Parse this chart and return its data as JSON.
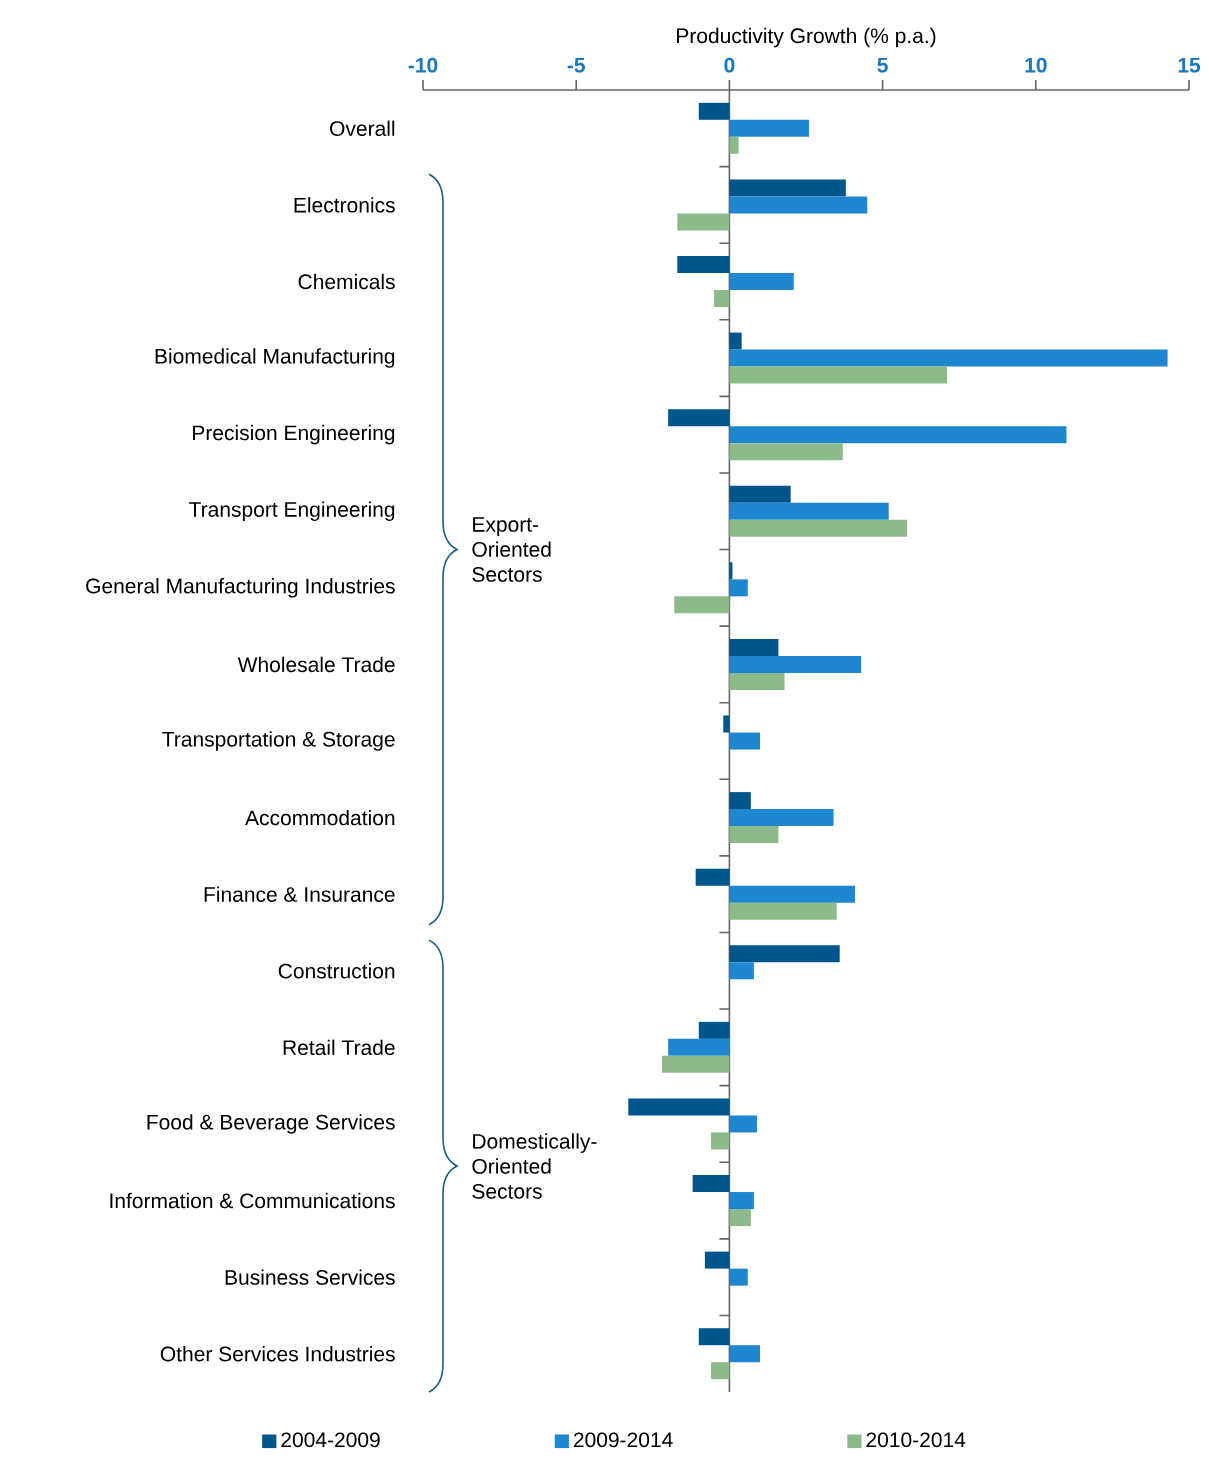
{
  "chart_data": {
    "type": "bar",
    "orientation": "horizontal",
    "xlabel": "Productivity Growth (% p.a.)",
    "categories": [
      "Overall",
      "Electronics",
      "Chemicals",
      "Biomedical Manufacturing",
      "Precision Engineering",
      "Transport Engineering",
      "General Manufacturing Industries",
      "Wholesale Trade",
      "Transportation & Storage",
      "Accommodation",
      "Finance & Insurance",
      "Construction",
      "Retail Trade",
      "Food & Beverage Services",
      "Information & Communications",
      "Business Services",
      "Other Services Industries"
    ],
    "series": [
      {
        "name": "2004-2009",
        "color": "#00568a",
        "values": [
          -1.0,
          3.8,
          -1.7,
          0.4,
          -2.0,
          2.0,
          0.1,
          1.6,
          -0.2,
          0.7,
          -1.1,
          3.6,
          -1.0,
          -3.3,
          -1.2,
          -0.8,
          -1.0
        ]
      },
      {
        "name": "2009-2014",
        "color": "#1e87d0",
        "values": [
          2.6,
          4.5,
          2.1,
          14.3,
          11.0,
          5.2,
          0.6,
          4.3,
          1.0,
          3.4,
          4.1,
          0.8,
          -2.0,
          0.9,
          0.8,
          0.6,
          1.0
        ]
      },
      {
        "name": "2010-2014",
        "color": "#8dba8a",
        "values": [
          0.3,
          -1.7,
          -0.5,
          7.1,
          3.7,
          5.8,
          -1.8,
          1.8,
          0.0,
          1.6,
          3.5,
          null,
          -2.2,
          -0.6,
          0.7,
          null,
          -0.6
        ]
      }
    ],
    "xlim": [
      -10,
      15
    ],
    "xticks": [
      -10,
      -5,
      0,
      5,
      10,
      15
    ],
    "legend": "bottom",
    "annotations": [
      "Export-Oriented Sectors",
      "Domestically-Oriented Sectors"
    ]
  }
}
